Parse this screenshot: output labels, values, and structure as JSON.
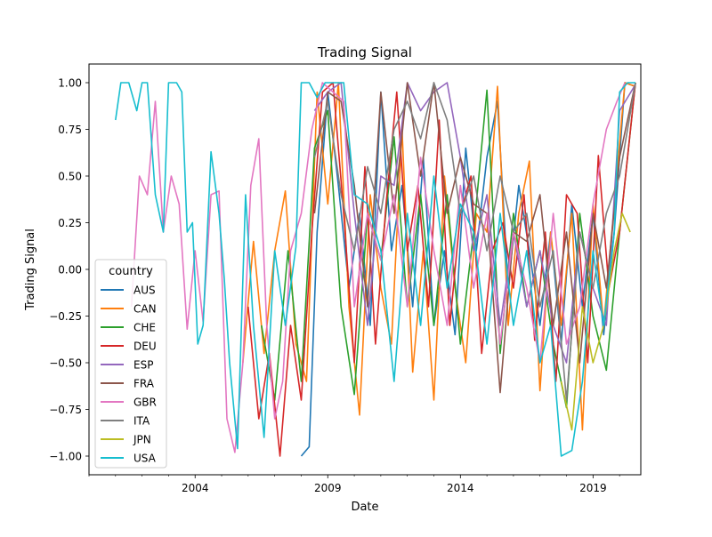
{
  "chart_data": {
    "type": "line",
    "title": "Trading Signal",
    "xlabel": "Date",
    "ylabel": "Trading Signal",
    "xlim": [
      2000.0,
      2020.8
    ],
    "ylim": [
      -1.1,
      1.1
    ],
    "x_ticks": [
      {
        "x": 2004,
        "label": "2004"
      },
      {
        "x": 2009,
        "label": "2009"
      },
      {
        "x": 2014,
        "label": "2014"
      },
      {
        "x": 2019,
        "label": "2019"
      }
    ],
    "y_ticks": [
      {
        "y": 1.0,
        "label": "1.00"
      },
      {
        "y": 0.75,
        "label": "0.75"
      },
      {
        "y": 0.5,
        "label": "0.50"
      },
      {
        "y": 0.25,
        "label": "0.25"
      },
      {
        "y": 0.0,
        "label": "0.00"
      },
      {
        "y": -0.25,
        "label": "−0.25"
      },
      {
        "y": -0.5,
        "label": "−0.50"
      },
      {
        "y": -0.75,
        "label": "−0.75"
      },
      {
        "y": -1.0,
        "label": "−1.00"
      }
    ],
    "grid": false,
    "legend": {
      "title": "country",
      "position": "lower-left"
    },
    "series": [
      {
        "name": "AUS",
        "color": "#1f77b4",
        "x": [
          2008.0,
          2008.3,
          2008.6,
          2009.0,
          2009.4,
          2009.8,
          2010.2,
          2010.6,
          2011.0,
          2011.4,
          2011.8,
          2012.2,
          2012.6,
          2013.0,
          2013.4,
          2013.8,
          2014.2,
          2014.6,
          2015.0,
          2015.4,
          2015.8,
          2016.2,
          2016.6,
          2017.0,
          2017.4,
          2017.8,
          2018.2,
          2018.6,
          2019.0,
          2019.4,
          2019.8,
          2020.2,
          2020.6
        ],
        "y": [
          -1.0,
          -0.95,
          0.2,
          0.95,
          0.45,
          -0.1,
          0.3,
          -0.3,
          0.95,
          0.1,
          0.45,
          -0.2,
          0.6,
          -0.3,
          0.1,
          -0.35,
          0.65,
          0.1,
          0.6,
          0.9,
          -0.1,
          0.45,
          0.1,
          -0.3,
          0.2,
          -0.4,
          0.35,
          -0.2,
          0.3,
          -0.35,
          0.2,
          1.0,
          0.98
        ]
      },
      {
        "name": "CAN",
        "color": "#ff7f0e",
        "x": [
          2005.8,
          2006.2,
          2006.6,
          2007.0,
          2007.4,
          2007.8,
          2008.2,
          2008.6,
          2009.0,
          2009.4,
          2009.8,
          2010.2,
          2010.6,
          2011.0,
          2011.4,
          2011.8,
          2012.2,
          2012.6,
          2013.0,
          2013.4,
          2013.8,
          2014.2,
          2014.6,
          2015.0,
          2015.4,
          2015.8,
          2016.2,
          2016.6,
          2017.0,
          2017.4,
          2017.8,
          2018.2,
          2018.6,
          2019.0,
          2019.4,
          2019.8,
          2020.2,
          2020.6
        ],
        "y": [
          -0.5,
          0.15,
          -0.45,
          0.1,
          0.42,
          -0.4,
          -0.6,
          0.95,
          0.35,
          1.0,
          -0.2,
          -0.78,
          0.4,
          -0.1,
          -0.4,
          0.75,
          -0.55,
          0.1,
          -0.7,
          0.5,
          -0.1,
          -0.5,
          0.3,
          0.2,
          0.98,
          -0.3,
          0.3,
          0.58,
          -0.65,
          0.2,
          -0.3,
          0.3,
          -0.86,
          0.35,
          -0.3,
          0.35,
          1.0,
          0.98
        ]
      },
      {
        "name": "CHE",
        "color": "#2ca02c",
        "x": [
          2006.5,
          2007.0,
          2007.5,
          2008.0,
          2008.5,
          2009.0,
          2009.5,
          2010.0,
          2010.5,
          2011.0,
          2011.5,
          2012.0,
          2012.5,
          2013.0,
          2013.5,
          2014.0,
          2014.5,
          2015.0,
          2015.5,
          2016.0,
          2016.5,
          2017.0,
          2017.5,
          2018.0,
          2018.5,
          2019.0,
          2019.5,
          2020.0,
          2020.6
        ],
        "y": [
          -0.3,
          -0.7,
          0.1,
          -0.6,
          0.65,
          0.85,
          -0.2,
          -0.67,
          0.3,
          0.05,
          0.71,
          -0.2,
          0.4,
          -0.3,
          0.4,
          -0.4,
          0.2,
          0.96,
          -0.45,
          0.3,
          -0.2,
          0.1,
          -0.4,
          -0.74,
          0.3,
          -0.25,
          -0.54,
          0.2,
          1.0
        ]
      },
      {
        "name": "DEU",
        "color": "#d62728",
        "x": [
          2006.0,
          2006.4,
          2006.8,
          2007.2,
          2007.6,
          2008.0,
          2008.4,
          2008.8,
          2009.2,
          2009.6,
          2010.0,
          2010.4,
          2010.8,
          2011.2,
          2011.6,
          2012.0,
          2012.4,
          2012.8,
          2013.2,
          2013.6,
          2014.0,
          2014.4,
          2014.8,
          2015.2,
          2015.6,
          2016.0,
          2016.4,
          2016.8,
          2017.2,
          2017.6,
          2018.0,
          2018.4,
          2018.8,
          2019.2,
          2019.6,
          2020.0,
          2020.6
        ],
        "y": [
          -0.2,
          -0.8,
          -0.45,
          -1.0,
          -0.3,
          -0.7,
          0.2,
          0.95,
          1.0,
          0.3,
          -0.5,
          0.55,
          -0.4,
          0.35,
          0.95,
          0.1,
          0.45,
          -0.2,
          0.8,
          -0.3,
          0.3,
          0.5,
          -0.45,
          0.1,
          0.25,
          -0.1,
          0.4,
          -0.38,
          0.2,
          -0.6,
          0.4,
          0.3,
          -0.5,
          0.61,
          -0.1,
          0.2,
          1.0
        ]
      },
      {
        "name": "ESP",
        "color": "#9467bd",
        "x": [
          2008.5,
          2009.0,
          2009.5,
          2010.0,
          2010.5,
          2011.0,
          2011.5,
          2012.0,
          2012.5,
          2013.0,
          2013.5,
          2014.0,
          2014.5,
          2015.0,
          2015.5,
          2016.0,
          2016.5,
          2017.0,
          2017.5,
          2018.0,
          2018.5,
          2019.0,
          2019.5,
          2020.0,
          2020.6
        ],
        "y": [
          0.85,
          0.95,
          1.0,
          0.3,
          -0.3,
          0.5,
          0.45,
          1.0,
          0.85,
          0.95,
          1.0,
          0.6,
          0.1,
          0.4,
          -0.3,
          0.2,
          -0.2,
          0.1,
          -0.3,
          -0.5,
          0.2,
          -0.1,
          -0.3,
          0.85,
          0.99
        ]
      },
      {
        "name": "FRA",
        "color": "#8c564b",
        "x": [
          2008.5,
          2009.0,
          2009.5,
          2010.0,
          2010.5,
          2011.0,
          2011.5,
          2012.0,
          2012.5,
          2013.0,
          2013.5,
          2014.0,
          2014.5,
          2015.0,
          2015.5,
          2016.0,
          2016.5,
          2017.0,
          2017.5,
          2018.0,
          2018.5,
          2019.0,
          2019.5,
          2020.0,
          2020.6
        ],
        "y": [
          0.3,
          0.95,
          0.9,
          0.45,
          -0.2,
          0.95,
          0.3,
          1.0,
          0.5,
          1.0,
          0.3,
          0.6,
          0.35,
          0.3,
          -0.66,
          0.2,
          0.15,
          0.4,
          -0.3,
          0.2,
          -0.5,
          0.3,
          -0.1,
          0.6,
          1.0
        ]
      },
      {
        "name": "GBR",
        "color": "#e377c2",
        "x": [
          2001.6,
          2001.9,
          2002.2,
          2002.5,
          2002.8,
          2003.1,
          2003.4,
          2003.7,
          2004.0,
          2004.3,
          2004.6,
          2004.9,
          2005.2,
          2005.5,
          2005.8,
          2006.1,
          2006.4,
          2006.7,
          2007.0,
          2007.3,
          2007.6,
          2008.0,
          2008.4,
          2008.8,
          2009.2,
          2009.6,
          2010.0,
          2010.5,
          2011.0,
          2011.5,
          2012.0,
          2012.5,
          2013.0,
          2013.5,
          2014.0,
          2014.5,
          2015.0,
          2015.5,
          2016.0,
          2016.5,
          2017.0,
          2017.5,
          2018.0,
          2018.5,
          2019.0,
          2019.5,
          2019.9,
          2020.2
        ],
        "y": [
          -0.2,
          0.5,
          0.4,
          0.9,
          0.2,
          0.5,
          0.35,
          -0.32,
          0.1,
          -0.28,
          0.4,
          0.42,
          -0.8,
          -0.98,
          -0.5,
          0.45,
          0.7,
          -0.3,
          -0.8,
          -0.6,
          0.1,
          0.3,
          0.75,
          1.0,
          0.95,
          0.9,
          -0.2,
          0.3,
          0.05,
          0.4,
          -0.2,
          0.6,
          0.1,
          -0.3,
          0.45,
          -0.1,
          0.3,
          -0.4,
          0.2,
          -0.1,
          -0.5,
          0.3,
          -0.4,
          -0.2,
          0.35,
          0.75,
          0.9,
          1.0
        ]
      },
      {
        "name": "ITA",
        "color": "#7f7f7f",
        "x": [
          2008.5,
          2009.0,
          2009.5,
          2010.0,
          2010.5,
          2011.0,
          2011.5,
          2012.0,
          2012.5,
          2013.0,
          2013.5,
          2014.0,
          2014.5,
          2015.0,
          2015.5,
          2016.0,
          2016.5,
          2017.0,
          2017.5,
          2018.0,
          2018.5,
          2019.0,
          2019.5,
          2020.0,
          2020.6
        ],
        "y": [
          0.6,
          0.9,
          0.4,
          0.1,
          0.55,
          0.3,
          0.75,
          0.9,
          0.7,
          1.0,
          0.8,
          0.3,
          0.5,
          0.1,
          0.5,
          0.2,
          0.3,
          -0.2,
          0.1,
          -0.7,
          0.2,
          -0.1,
          0.3,
          0.5,
          1.0
        ]
      },
      {
        "name": "JPN",
        "color": "#bcbd22",
        "x": [
          2017.8,
          2018.2,
          2018.6,
          2019.0,
          2019.4,
          2019.8,
          2020.1,
          2020.4
        ],
        "y": [
          -0.6,
          -0.86,
          -0.2,
          -0.5,
          -0.3,
          0.1,
          0.3,
          0.2
        ]
      },
      {
        "name": "USA",
        "color": "#17becf",
        "x": [
          2001.0,
          2001.2,
          2001.5,
          2001.8,
          2002.0,
          2002.2,
          2002.5,
          2002.8,
          2003.0,
          2003.3,
          2003.5,
          2003.7,
          2003.9,
          2004.1,
          2004.3,
          2004.6,
          2004.9,
          2005.1,
          2005.3,
          2005.6,
          2005.9,
          2006.2,
          2006.6,
          2007.0,
          2007.4,
          2007.8,
          2008.0,
          2008.3,
          2008.6,
          2008.9,
          2009.2,
          2009.6,
          2010.0,
          2010.5,
          2011.0,
          2011.5,
          2012.0,
          2012.5,
          2013.0,
          2013.5,
          2014.0,
          2014.5,
          2015.0,
          2015.5,
          2016.0,
          2016.5,
          2017.0,
          2017.4,
          2017.8,
          2018.2,
          2018.6,
          2019.0,
          2019.4,
          2019.8,
          2020.0,
          2020.3,
          2020.6
        ],
        "y": [
          0.8,
          1.0,
          1.0,
          0.85,
          1.0,
          1.0,
          0.4,
          0.2,
          1.0,
          1.0,
          0.95,
          0.2,
          0.25,
          -0.4,
          -0.3,
          0.63,
          0.3,
          -0.05,
          -0.5,
          -0.96,
          0.4,
          -0.3,
          -0.9,
          0.1,
          -0.3,
          0.12,
          1.0,
          1.0,
          0.92,
          1.0,
          1.0,
          1.0,
          0.4,
          0.35,
          0.1,
          -0.6,
          0.3,
          -0.3,
          0.5,
          -0.1,
          0.35,
          0.2,
          -0.4,
          0.3,
          -0.3,
          0.1,
          -0.5,
          -0.3,
          -1.0,
          -0.97,
          -0.6,
          0.1,
          -0.3,
          0.2,
          0.95,
          1.0,
          1.0
        ]
      }
    ]
  }
}
